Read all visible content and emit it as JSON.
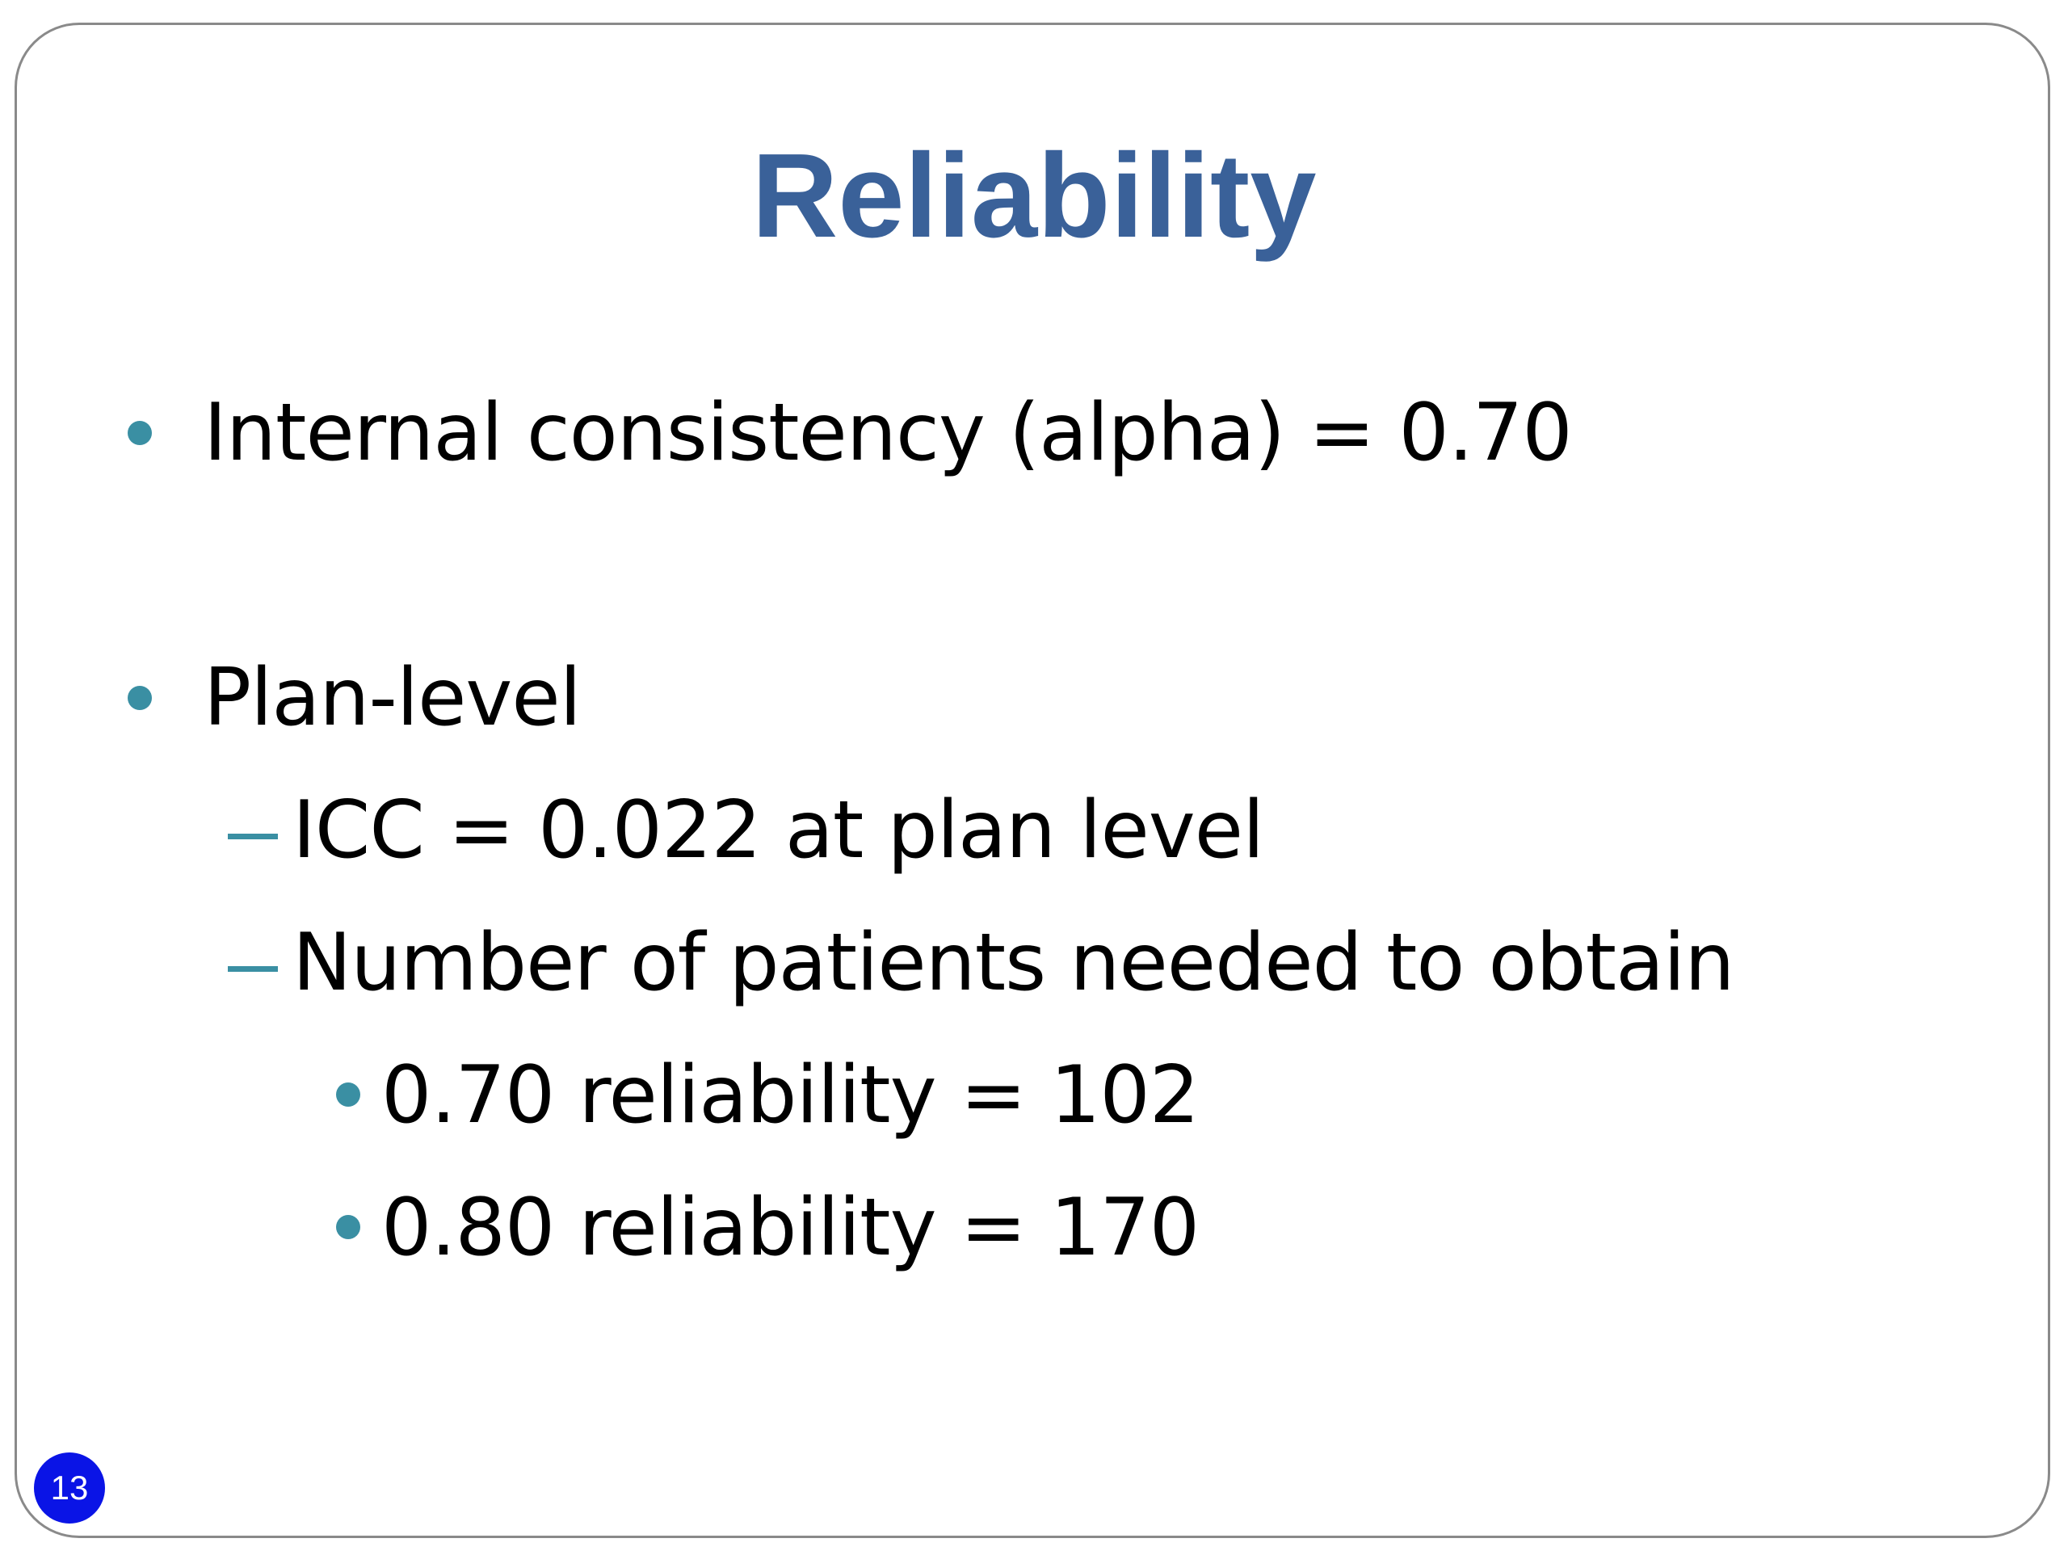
{
  "slide": {
    "title": "Reliability",
    "bullets": [
      {
        "text": "Internal consistency (alpha) = 0.70"
      },
      {
        "text": "Plan-level",
        "sub": [
          {
            "text": "ICC = 0.022 at plan level"
          },
          {
            "text": "Number of patients needed to obtain",
            "sub": [
              {
                "text": "0.70 reliability = 102"
              },
              {
                "text": "0.80 reliability = 170"
              }
            ]
          }
        ]
      }
    ],
    "page_number": "13",
    "colors": {
      "title": "#3a6199",
      "bullet": "#3a8fa3",
      "page_badge": "#0a14e6"
    }
  }
}
